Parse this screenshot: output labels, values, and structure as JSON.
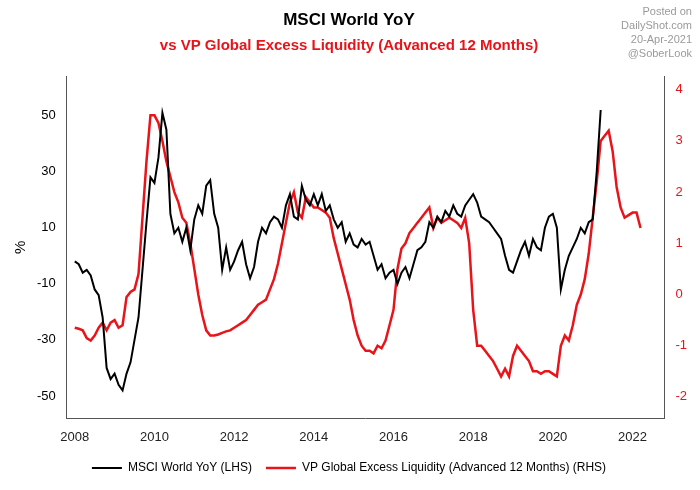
{
  "chart_data": {
    "type": "line",
    "title": "MSCI World YoY",
    "subtitle": "vs VP Global Excess Liquidity (Advanced 12 Months)",
    "y_label": "%",
    "annotations": [
      "Posted on",
      "DailyShot.com",
      "20-Apr-2021",
      "@SoberLook"
    ],
    "x": [
      2008.0,
      2008.1,
      2008.2,
      2008.3,
      2008.4,
      2008.5,
      2008.6,
      2008.7,
      2008.8,
      2008.9,
      2009.0,
      2009.1,
      2009.2,
      2009.3,
      2009.4,
      2009.5,
      2009.6,
      2009.7,
      2009.8,
      2009.9,
      2010.0,
      2010.1,
      2010.2,
      2010.3,
      2010.4,
      2010.5,
      2010.6,
      2010.7,
      2010.8,
      2010.9,
      2011.0,
      2011.1,
      2011.2,
      2011.3,
      2011.4,
      2011.5,
      2011.6,
      2011.7,
      2011.8,
      2011.9,
      2012.0,
      2012.1,
      2012.2,
      2012.3,
      2012.4,
      2012.5,
      2012.6,
      2012.7,
      2012.8,
      2012.9,
      2013.0,
      2013.1,
      2013.2,
      2013.3,
      2013.4,
      2013.5,
      2013.6,
      2013.7,
      2013.8,
      2013.9,
      2014.0,
      2014.1,
      2014.2,
      2014.3,
      2014.4,
      2014.5,
      2014.6,
      2014.7,
      2014.8,
      2014.9,
      2015.0,
      2015.1,
      2015.2,
      2015.3,
      2015.4,
      2015.5,
      2015.6,
      2015.7,
      2015.8,
      2015.9,
      2016.0,
      2016.1,
      2016.2,
      2016.3,
      2016.4,
      2016.5,
      2016.6,
      2016.7,
      2016.8,
      2016.9,
      2017.0,
      2017.1,
      2017.2,
      2017.3,
      2017.4,
      2017.5,
      2017.6,
      2017.7,
      2017.8,
      2017.9,
      2018.0,
      2018.1,
      2018.2,
      2018.3,
      2018.4,
      2018.5,
      2018.6,
      2018.7,
      2018.8,
      2018.9,
      2019.0,
      2019.1,
      2019.2,
      2019.3,
      2019.4,
      2019.5,
      2019.6,
      2019.7,
      2019.8,
      2019.9,
      2020.0,
      2020.1,
      2020.2,
      2020.3,
      2020.4,
      2020.5,
      2020.6,
      2020.7,
      2020.8,
      2020.9,
      2021.0,
      2021.1,
      2021.2,
      2021.3,
      2021.4,
      2021.5,
      2021.6,
      2021.7,
      2021.8,
      2021.9,
      2022.0,
      2022.1,
      2022.2
    ],
    "series": [
      {
        "name": "MSCI World YoY (LHS)",
        "color": "#000000",
        "values": [
          -2,
          -3,
          -6,
          -5,
          -7,
          -12,
          -14,
          -22,
          -40,
          -44,
          -42,
          -46,
          -48,
          -42,
          -38,
          -30,
          -22,
          -5,
          12,
          28,
          26,
          35,
          51,
          45,
          15,
          8,
          10,
          5,
          10,
          2,
          13,
          18,
          15,
          25,
          27,
          15,
          10,
          -5,
          3,
          -5,
          -2,
          2,
          5,
          -3,
          -8,
          -4,
          5,
          10,
          8,
          12,
          14,
          13,
          10,
          18,
          22,
          14,
          13,
          25,
          20,
          18,
          22,
          18,
          22,
          16,
          18,
          13,
          10,
          12,
          5,
          8,
          4,
          3,
          6,
          4,
          5,
          0,
          -5,
          -3,
          -8,
          -6,
          -5,
          -10,
          -6,
          -4,
          -8,
          -3,
          2,
          3,
          5,
          12,
          10,
          14,
          12,
          16,
          14,
          18,
          15,
          14,
          18,
          20,
          22,
          19,
          14,
          13,
          12,
          10,
          8,
          6,
          0,
          -5,
          -6,
          -2,
          2,
          5,
          0,
          6,
          3,
          2,
          10,
          14,
          15,
          10,
          -12,
          -5,
          0,
          3,
          6,
          10,
          8,
          12,
          13,
          30,
          52,
          null,
          null,
          null,
          null,
          null,
          null,
          null,
          null,
          null,
          null
        ]
      },
      {
        "name": "VP Global Excess Liquidity (Advanced 12 Months) (RHS)",
        "color": "#e8141a",
        "axis": "y2",
        "values": [
          -0.65,
          -0.67,
          -0.7,
          -0.85,
          -0.9,
          -0.8,
          -0.65,
          -0.55,
          -0.7,
          -0.55,
          -0.5,
          -0.65,
          -0.6,
          -0.05,
          0.05,
          0.1,
          0.4,
          1.5,
          2.6,
          3.5,
          3.5,
          3.35,
          3.0,
          2.6,
          2.3,
          2.0,
          1.8,
          1.5,
          1.4,
          1.0,
          0.5,
          0.0,
          -0.4,
          -0.7,
          -0.8,
          -0.8,
          -0.78,
          -0.75,
          -0.72,
          -0.7,
          -0.65,
          -0.6,
          -0.55,
          -0.5,
          -0.4,
          -0.3,
          -0.2,
          -0.15,
          -0.1,
          0.1,
          0.3,
          0.6,
          1.0,
          1.4,
          1.8,
          2.0,
          1.6,
          1.5,
          1.9,
          1.8,
          1.7,
          1.7,
          1.65,
          1.6,
          1.5,
          1.1,
          0.8,
          0.5,
          0.2,
          -0.1,
          -0.5,
          -0.8,
          -1.0,
          -1.1,
          -1.1,
          -1.15,
          -1.0,
          -1.05,
          -0.9,
          -0.6,
          -0.3,
          0.5,
          0.9,
          1.0,
          1.2,
          1.3,
          1.4,
          1.5,
          1.6,
          1.7,
          1.3,
          1.5,
          1.4,
          1.45,
          1.5,
          1.45,
          1.4,
          1.3,
          1.5,
          1.0,
          -0.3,
          -1.0,
          -1.0,
          -1.1,
          -1.2,
          -1.3,
          -1.45,
          -1.6,
          -1.45,
          -1.6,
          -1.2,
          -1.0,
          -1.1,
          -1.2,
          -1.3,
          -1.5,
          -1.5,
          -1.55,
          -1.5,
          -1.5,
          -1.55,
          -1.6,
          -1.0,
          -0.8,
          -0.9,
          -0.6,
          -0.2,
          0.0,
          0.3,
          0.8,
          1.5,
          2.2,
          3.0,
          3.1,
          3.2,
          2.8,
          2.1,
          1.7,
          1.5,
          1.55,
          1.6,
          1.6,
          1.3
        ]
      }
    ],
    "xlim": [
      2007.8,
      2022.8
    ],
    "xticks": [
      2008,
      2010,
      2012,
      2014,
      2016,
      2018,
      2020,
      2022
    ],
    "ylim": [
      -58,
      64
    ],
    "yticks": [
      -50,
      -30,
      -10,
      10,
      30,
      50
    ],
    "y2lim": [
      -2.42,
      4.26
    ],
    "y2ticks": [
      -2,
      -1,
      0,
      1,
      2,
      3,
      4
    ],
    "grid": false,
    "legend": "bottom"
  }
}
